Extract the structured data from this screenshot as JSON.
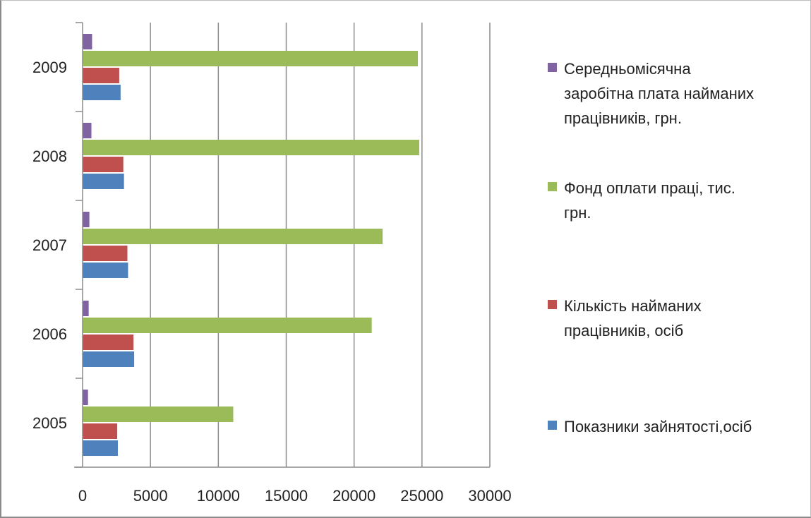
{
  "chart_data": {
    "type": "bar",
    "orientation": "horizontal",
    "categories": [
      "2005",
      "2006",
      "2007",
      "2008",
      "2009"
    ],
    "series": [
      {
        "name": "Показники зайнятості,осіб",
        "color": "#4F81BD",
        "values": [
          2600,
          3800,
          3350,
          3050,
          2800
        ]
      },
      {
        "name": "Кількість найманих працівників, осіб",
        "color": "#C0504D",
        "values": [
          2550,
          3750,
          3300,
          3000,
          2700
        ]
      },
      {
        "name": "Фонд оплати праці, тис. грн.",
        "color": "#9BBB59",
        "values": [
          11100,
          21300,
          22100,
          24800,
          24700
        ]
      },
      {
        "name": "Середньомісячна заробітна плата найманих працівників, грн.",
        "color": "#8064A2",
        "values": [
          400,
          450,
          500,
          650,
          700
        ]
      }
    ],
    "xlim": [
      0,
      30000
    ],
    "xticks": [
      "0",
      "5000",
      "10000",
      "15000",
      "20000",
      "25000",
      "30000"
    ],
    "grid": "vertical",
    "legend_position": "right",
    "legend_lines": [
      [
        "Середньомісячна",
        "заробітна плата найманих",
        "працівників, грн."
      ],
      [
        "Фонд оплати праці, тис.",
        "грн."
      ],
      [
        "Кількість найманих",
        "працівників, осіб"
      ],
      [
        "Показники зайнятості,осіб"
      ]
    ]
  }
}
